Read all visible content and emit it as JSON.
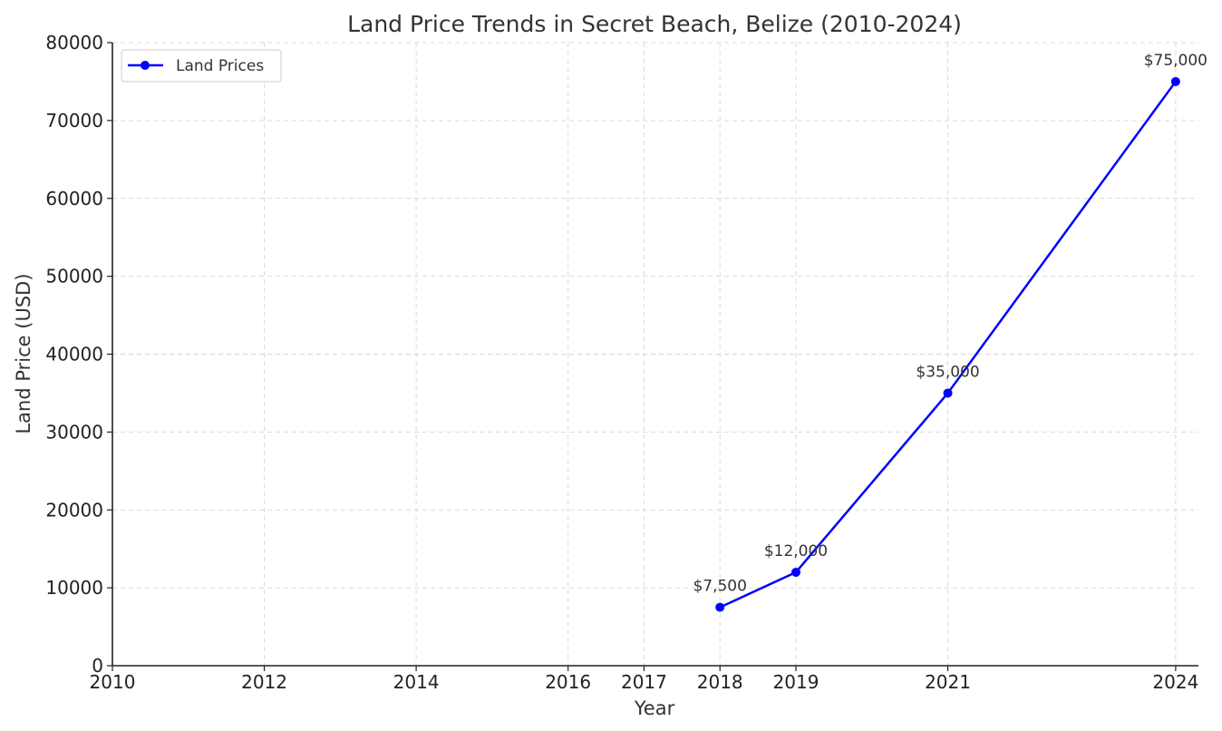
{
  "chart_data": {
    "type": "line",
    "title": "Land Price Trends in Secret Beach, Belize (2010-2024)",
    "xlabel": "Year",
    "ylabel": "Land Price (USD)",
    "xlim": [
      2010,
      2024.3
    ],
    "ylim": [
      0,
      80000
    ],
    "xticks": [
      2010,
      2012,
      2014,
      2016,
      2017,
      2018,
      2019,
      2021,
      2024
    ],
    "yticks": [
      0,
      10000,
      20000,
      30000,
      40000,
      50000,
      60000,
      70000,
      80000
    ],
    "grid": true,
    "legend_position": "top-left",
    "series": [
      {
        "name": "Land Prices",
        "color": "#0000ff",
        "x": [
          2018,
          2019,
          2021,
          2024
        ],
        "y": [
          7500,
          12000,
          35000,
          75000
        ],
        "labels": [
          "$7,500",
          "$12,000",
          "$35,000",
          "$75,000"
        ]
      }
    ]
  }
}
